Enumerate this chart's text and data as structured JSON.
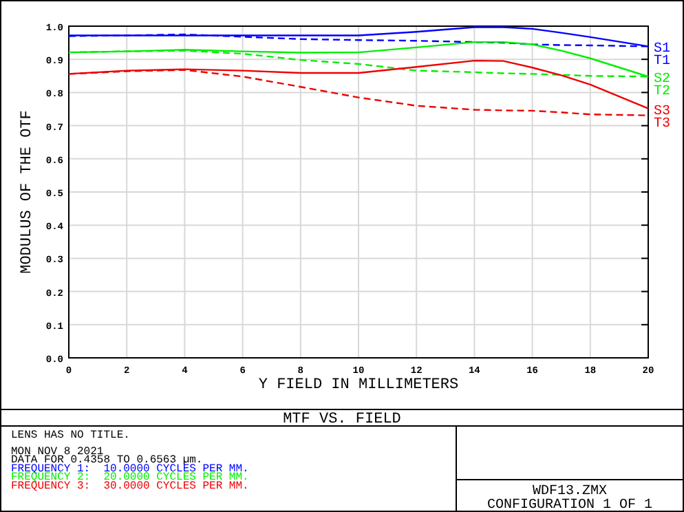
{
  "chart_data": {
    "type": "line",
    "title": "MTF VS. FIELD",
    "xlabel": "Y FIELD IN MILLIMETERS",
    "ylabel": "MODULUS OF THE OTF",
    "annotations": [
      "LENS HAS NO TITLE.",
      "MON NOV 8 2021",
      "DATA FOR 0.4358 TO 0.6563 µm.",
      "FREQUENCY 1:  10.0000 CYCLES PER MM.",
      "FREQUENCY 2:  20.0000 CYCLES PER MM.",
      "FREQUENCY 3:  30.0000 CYCLES PER MM.",
      "WDF13.ZMX",
      "CONFIGURATION 1 OF 1"
    ],
    "x": [
      0,
      2,
      4,
      6,
      8,
      10,
      12,
      14,
      15,
      16,
      17,
      18,
      20
    ],
    "series": [
      {
        "name": "S1",
        "color": "#0000ff",
        "line_style": "solid",
        "values": [
          0.972,
          0.972,
          0.972,
          0.972,
          0.972,
          0.972,
          0.983,
          0.997,
          0.997,
          0.992,
          0.98,
          0.967,
          0.939
        ]
      },
      {
        "name": "T1",
        "color": "#0000ff",
        "line_style": "dashed",
        "values": [
          0.97,
          0.972,
          0.975,
          0.968,
          0.961,
          0.958,
          0.956,
          0.952,
          0.95,
          0.945,
          0.943,
          0.942,
          0.939
        ]
      },
      {
        "name": "S2",
        "color": "#00ee00",
        "line_style": "solid",
        "values": [
          0.921,
          0.924,
          0.929,
          0.924,
          0.92,
          0.921,
          0.936,
          0.952,
          0.952,
          0.945,
          0.926,
          0.903,
          0.848
        ]
      },
      {
        "name": "T2",
        "color": "#00ee00",
        "line_style": "dashed",
        "values": [
          0.921,
          0.924,
          0.926,
          0.917,
          0.898,
          0.886,
          0.866,
          0.861,
          0.858,
          0.856,
          0.853,
          0.85,
          0.848
        ]
      },
      {
        "name": "S3",
        "color": "#ee0000",
        "line_style": "solid",
        "values": [
          0.856,
          0.866,
          0.87,
          0.866,
          0.859,
          0.859,
          0.877,
          0.896,
          0.895,
          0.875,
          0.852,
          0.824,
          0.752
        ]
      },
      {
        "name": "T3",
        "color": "#ee0000",
        "line_style": "dashed",
        "values": [
          0.856,
          0.864,
          0.868,
          0.848,
          0.817,
          0.785,
          0.76,
          0.748,
          0.746,
          0.745,
          0.74,
          0.734,
          0.731
        ]
      }
    ],
    "xlim": [
      0,
      20
    ],
    "xticks": [
      0,
      2,
      4,
      6,
      8,
      10,
      12,
      14,
      16,
      18,
      20
    ],
    "ylim": [
      0,
      1
    ],
    "yticks": [
      {
        "value": 0,
        "label": "0.0"
      },
      {
        "value": 0.1,
        "label": "0.1"
      },
      {
        "value": 0.2,
        "label": "0.2"
      },
      {
        "value": 0.3,
        "label": "0.3"
      },
      {
        "value": 0.4,
        "label": "0.4"
      },
      {
        "value": 0.5,
        "label": "0.5"
      },
      {
        "value": 0.6,
        "label": "0.6"
      },
      {
        "value": 0.7,
        "label": "0.7"
      },
      {
        "value": 0.8,
        "label": "0.8"
      },
      {
        "value": 0.9,
        "label": "0.9"
      },
      {
        "value": 1,
        "label": "1.0"
      }
    ],
    "grid": true,
    "legend": false,
    "marker": "none"
  }
}
